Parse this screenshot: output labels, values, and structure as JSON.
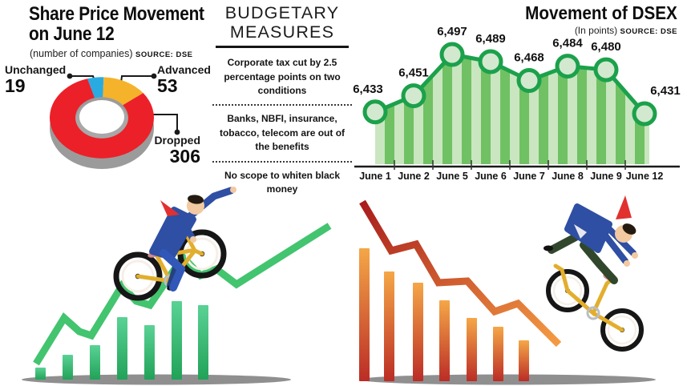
{
  "left_chart": {
    "title_line1": "Share Price Movement",
    "title_line2": "on June 12",
    "subtitle": "(number of companies)",
    "source": "SOURCE: DSE"
  },
  "budget_panel": {
    "title_line1": "BUDGETARY",
    "title_line2": "MEASURES",
    "items": [
      "Corporate tax cut by 2.5 percentage points on two conditions",
      "Banks, NBFI, insurance, tobacco, telecom are out of the benefits",
      "No scope to whiten black money"
    ]
  },
  "right_chart": {
    "title": "Movement of DSEX",
    "subtitle": "(In points)",
    "source": "SOURCE: DSE"
  },
  "chart_data": [
    {
      "type": "pie",
      "variant": "3d-donut",
      "title": "Share Price Movement on June 12",
      "unit": "number of companies",
      "source": "DSE",
      "start_angle_deg": 344,
      "slices": [
        {
          "label": "Unchanged",
          "value": 19,
          "color": "#29abe2"
        },
        {
          "label": "Advanced",
          "value": 53,
          "color": "#f5b32b"
        },
        {
          "label": "Dropped",
          "value": 306,
          "color": "#ec2028"
        }
      ]
    },
    {
      "type": "area",
      "title": "Movement of DSEX",
      "unit": "points",
      "source": "DSE",
      "categories": [
        "June 1",
        "June 2",
        "June 5",
        "June 6",
        "June 7",
        "June 8",
        "June 9",
        "June 12"
      ],
      "values": [
        6433,
        6451,
        6497,
        6489,
        6468,
        6484,
        6480,
        6431
      ],
      "value_labels": [
        "6,433",
        "6,451",
        "6,497",
        "6,489",
        "6,468",
        "6,484",
        "6,480",
        "6,431"
      ],
      "ylim": [
        6420,
        6510
      ],
      "grid": false,
      "legend": false,
      "line_color": "#1ba14b",
      "marker_fill": "#d2e9cf",
      "stripe_colors": [
        "#c9e6c0",
        "#70c163"
      ]
    }
  ],
  "colors": {
    "donut_base": "#9b9b9b",
    "axis": "#1a1a1a",
    "up_bar_top": "#5ad295",
    "up_bar_bottom": "#21a258",
    "up_line": "#43c46f",
    "down_bar_top": "#f5a747",
    "down_bar_bottom": "#bb2c26",
    "down_line_start": "#a81d1c",
    "down_line_end": "#f59b43",
    "shadow": "#8f8f8f"
  }
}
